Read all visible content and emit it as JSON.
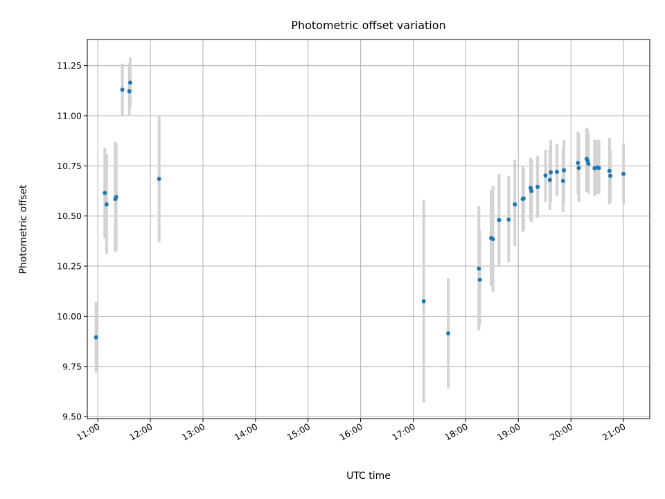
{
  "chart_data": {
    "type": "scatter",
    "title": "Photometric offset variation",
    "xlabel": "UTC time",
    "ylabel": "Photometric offset",
    "xlim": [
      "10:48",
      "21:30"
    ],
    "ylim": [
      9.49,
      11.38
    ],
    "grid": true,
    "x_ticks": [
      "11:00",
      "12:00",
      "13:00",
      "14:00",
      "15:00",
      "16:00",
      "17:00",
      "18:00",
      "19:00",
      "20:00",
      "21:00"
    ],
    "y_ticks": [
      "9.50",
      "9.75",
      "10.00",
      "10.25",
      "10.50",
      "10.75",
      "11.00",
      "11.25"
    ],
    "colors": {
      "point": "#1f77b4",
      "errorbar": "#d3d3d3"
    },
    "points": [
      {
        "x": "10:58",
        "y": 9.895,
        "yerr": [
          9.72,
          10.07
        ]
      },
      {
        "x": "11:08",
        "y": 10.615,
        "yerr": [
          10.39,
          10.84
        ]
      },
      {
        "x": "11:10",
        "y": 10.558,
        "yerr": [
          10.31,
          10.81
        ]
      },
      {
        "x": "11:20",
        "y": 10.585,
        "yerr": [
          10.32,
          10.87
        ]
      },
      {
        "x": "11:21",
        "y": 10.595,
        "yerr": [
          10.33,
          10.86
        ]
      },
      {
        "x": "11:28",
        "y": 11.13,
        "yerr": [
          11.0,
          11.26
        ]
      },
      {
        "x": "11:36",
        "y": 11.122,
        "yerr": [
          11.0,
          11.26
        ]
      },
      {
        "x": "11:37",
        "y": 11.165,
        "yerr": [
          11.04,
          11.29
        ]
      },
      {
        "x": "12:10",
        "y": 10.685,
        "yerr": [
          10.37,
          11.0
        ]
      },
      {
        "x": "17:12",
        "y": 10.075,
        "yerr": [
          9.57,
          10.58
        ]
      },
      {
        "x": "17:40",
        "y": 9.915,
        "yerr": [
          9.64,
          10.19
        ]
      },
      {
        "x": "18:15",
        "y": 10.238,
        "yerr": [
          9.93,
          10.55
        ]
      },
      {
        "x": "18:16",
        "y": 10.182,
        "yerr": [
          9.96,
          10.43
        ]
      },
      {
        "x": "18:29",
        "y": 10.39,
        "yerr": [
          10.15,
          10.63
        ]
      },
      {
        "x": "18:31",
        "y": 10.385,
        "yerr": [
          10.12,
          10.65
        ]
      },
      {
        "x": "18:38",
        "y": 10.48,
        "yerr": [
          10.25,
          10.71
        ]
      },
      {
        "x": "18:49",
        "y": 10.482,
        "yerr": [
          10.27,
          10.7
        ]
      },
      {
        "x": "18:56",
        "y": 10.558,
        "yerr": [
          10.35,
          10.78
        ]
      },
      {
        "x": "19:05",
        "y": 10.585,
        "yerr": [
          10.42,
          10.75
        ]
      },
      {
        "x": "19:06",
        "y": 10.588,
        "yerr": [
          10.43,
          10.74
        ]
      },
      {
        "x": "19:14",
        "y": 10.64,
        "yerr": [
          10.48,
          10.79
        ]
      },
      {
        "x": "19:15",
        "y": 10.625,
        "yerr": [
          10.47,
          10.78
        ]
      },
      {
        "x": "19:22",
        "y": 10.645,
        "yerr": [
          10.49,
          10.8
        ]
      },
      {
        "x": "19:31",
        "y": 10.702,
        "yerr": [
          10.57,
          10.83
        ]
      },
      {
        "x": "19:36",
        "y": 10.68,
        "yerr": [
          10.53,
          10.83
        ]
      },
      {
        "x": "19:37",
        "y": 10.718,
        "yerr": [
          10.57,
          10.88
        ]
      },
      {
        "x": "19:44",
        "y": 10.72,
        "yerr": [
          10.6,
          10.86
        ]
      },
      {
        "x": "19:51",
        "y": 10.675,
        "yerr": [
          10.52,
          10.84
        ]
      },
      {
        "x": "19:52",
        "y": 10.728,
        "yerr": [
          10.57,
          10.88
        ]
      },
      {
        "x": "20:08",
        "y": 10.765,
        "yerr": [
          10.61,
          10.92
        ]
      },
      {
        "x": "20:09",
        "y": 10.74,
        "yerr": [
          10.57,
          10.91
        ]
      },
      {
        "x": "20:18",
        "y": 10.785,
        "yerr": [
          10.62,
          10.94
        ]
      },
      {
        "x": "20:19",
        "y": 10.775,
        "yerr": [
          10.62,
          10.93
        ]
      },
      {
        "x": "20:20",
        "y": 10.76,
        "yerr": [
          10.61,
          10.91
        ]
      },
      {
        "x": "20:27",
        "y": 10.738,
        "yerr": [
          10.6,
          10.88
        ]
      },
      {
        "x": "20:30",
        "y": 10.742,
        "yerr": [
          10.61,
          10.88
        ]
      },
      {
        "x": "20:32",
        "y": 10.74,
        "yerr": [
          10.61,
          10.88
        ]
      },
      {
        "x": "20:44",
        "y": 10.725,
        "yerr": [
          10.56,
          10.89
        ]
      },
      {
        "x": "20:45",
        "y": 10.7,
        "yerr": [
          10.57,
          10.83
        ]
      },
      {
        "x": "21:00",
        "y": 10.71,
        "yerr": [
          10.56,
          10.86
        ]
      }
    ]
  }
}
